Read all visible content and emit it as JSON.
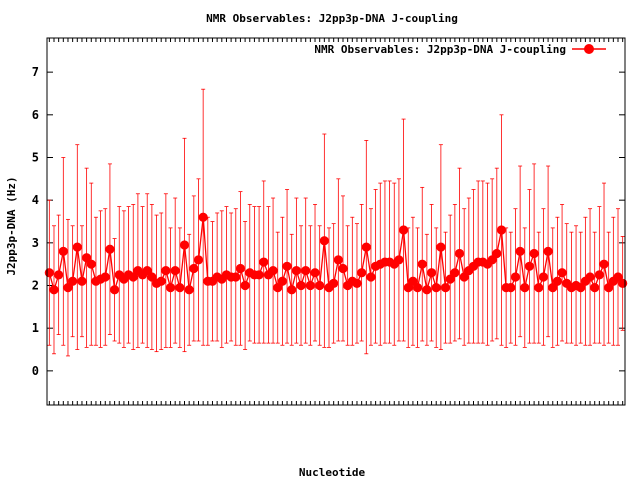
{
  "chart_data": {
    "type": "line",
    "title": "NMR Observables: J2pp3p-DNA J-coupling",
    "xlabel": "Nucleotide",
    "ylabel": "J2pp3p-DNA (Hz)",
    "ylim": [
      -0.8,
      7.8
    ],
    "yticks": [
      0,
      1,
      2,
      3,
      4,
      5,
      6,
      7
    ],
    "grid": false,
    "legend_placement": "top-right",
    "series": [
      {
        "name": "NMR Observables: J2pp3p-DNA J-coupling",
        "color": "#ff0000",
        "marker": "circle",
        "x": [
          1,
          2,
          3,
          4,
          5,
          6,
          7,
          8,
          9,
          10,
          11,
          12,
          13,
          14,
          15,
          16,
          17,
          18,
          19,
          20,
          21,
          22,
          23,
          24,
          25,
          26,
          27,
          28,
          29,
          30,
          31,
          32,
          33,
          34,
          35,
          36,
          37,
          38,
          39,
          40,
          41,
          42,
          43,
          44,
          45,
          46,
          47,
          48,
          49,
          50,
          51,
          52,
          53,
          54,
          55,
          56,
          57,
          58,
          59,
          60,
          61,
          62,
          63,
          64,
          65,
          66,
          67,
          68,
          69,
          70,
          71,
          72,
          73,
          74,
          75,
          76,
          77,
          78,
          79,
          80,
          81,
          82,
          83,
          84,
          85,
          86,
          87,
          88,
          89,
          90,
          91,
          92,
          93,
          94,
          95,
          96,
          97,
          98,
          99,
          100,
          101,
          102,
          103,
          104,
          105,
          106,
          107,
          108,
          109,
          110,
          111,
          112,
          113,
          114,
          115,
          116,
          117,
          118,
          119,
          120,
          121,
          122,
          123,
          124
        ],
        "values": [
          2.3,
          1.9,
          2.25,
          2.8,
          1.95,
          2.1,
          2.9,
          2.1,
          2.65,
          2.5,
          2.1,
          2.15,
          2.2,
          2.85,
          1.9,
          2.25,
          2.15,
          2.25,
          2.2,
          2.35,
          2.25,
          2.35,
          2.2,
          2.05,
          2.1,
          2.35,
          1.95,
          2.35,
          1.95,
          2.95,
          1.9,
          2.4,
          2.6,
          3.6,
          2.1,
          2.1,
          2.2,
          2.15,
          2.25,
          2.2,
          2.2,
          2.4,
          2.0,
          2.3,
          2.25,
          2.25,
          2.55,
          2.25,
          2.35,
          1.95,
          2.1,
          2.45,
          1.9,
          2.35,
          2.0,
          2.35,
          2.0,
          2.3,
          2.0,
          3.05,
          1.95,
          2.05,
          2.6,
          2.4,
          2.0,
          2.1,
          2.05,
          2.3,
          2.9,
          2.2,
          2.45,
          2.5,
          2.55,
          2.55,
          2.5,
          2.6,
          3.3,
          1.95,
          2.1,
          1.95,
          2.5,
          1.9,
          2.3,
          1.95,
          2.9,
          1.95,
          2.15,
          2.3,
          2.75,
          2.2,
          2.35,
          2.45,
          2.55,
          2.55,
          2.5,
          2.6,
          2.75,
          3.3,
          1.95,
          1.95,
          2.2,
          2.8,
          1.95,
          2.45,
          2.75,
          1.95,
          2.2,
          2.8,
          1.95,
          2.1,
          2.3,
          2.05,
          1.95,
          2.0,
          1.95,
          2.1,
          2.2,
          1.95,
          2.25,
          2.5,
          1.95,
          2.1,
          2.2,
          2.05
        ],
        "errors": [
          1.7,
          1.5,
          1.4,
          2.2,
          1.6,
          1.3,
          2.4,
          1.3,
          2.1,
          1.9,
          1.5,
          1.6,
          1.6,
          2.0,
          1.2,
          1.6,
          1.6,
          1.6,
          1.7,
          1.8,
          1.6,
          1.8,
          1.7,
          1.6,
          1.6,
          1.8,
          1.4,
          1.7,
          1.4,
          2.5,
          1.3,
          1.7,
          1.9,
          3.0,
          1.5,
          1.4,
          1.5,
          1.6,
          1.6,
          1.5,
          1.6,
          1.8,
          1.5,
          1.6,
          1.6,
          1.6,
          1.9,
          1.6,
          1.7,
          1.3,
          1.5,
          1.8,
          1.3,
          1.7,
          1.4,
          1.7,
          1.4,
          1.6,
          1.4,
          2.5,
          1.4,
          1.4,
          1.9,
          1.7,
          1.4,
          1.5,
          1.4,
          1.6,
          2.5,
          1.6,
          1.8,
          1.9,
          1.9,
          1.9,
          1.9,
          1.9,
          2.6,
          1.4,
          1.5,
          1.4,
          1.8,
          1.3,
          1.6,
          1.4,
          2.4,
          1.3,
          1.5,
          1.6,
          2.0,
          1.6,
          1.7,
          1.8,
          1.9,
          1.9,
          1.9,
          1.9,
          2.0,
          2.7,
          1.4,
          1.3,
          1.6,
          2.0,
          1.4,
          1.8,
          2.1,
          1.3,
          1.6,
          2.0,
          1.4,
          1.5,
          1.6,
          1.4,
          1.3,
          1.4,
          1.3,
          1.5,
          1.6,
          1.3,
          1.6,
          1.9,
          1.3,
          1.5,
          1.6,
          1.1
        ]
      }
    ]
  }
}
